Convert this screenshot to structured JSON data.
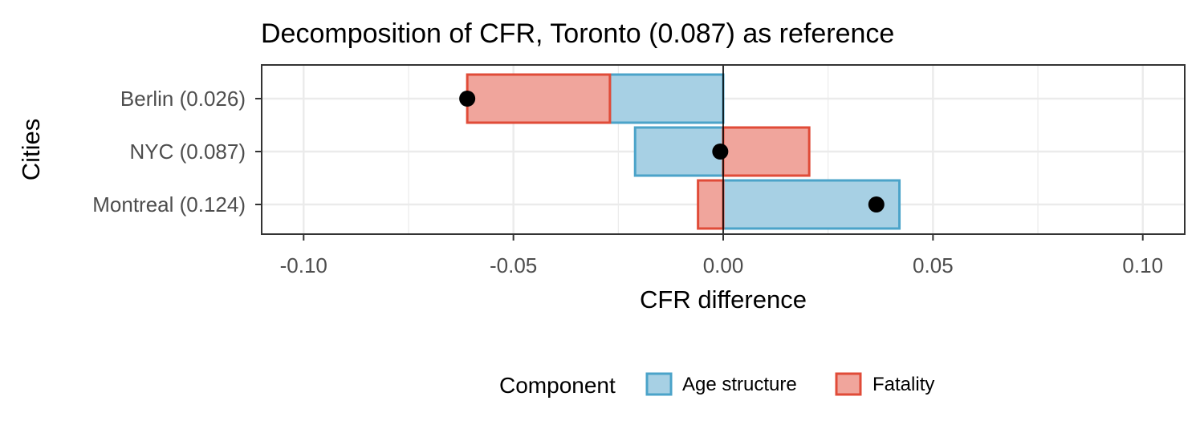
{
  "chart_data": {
    "type": "bar",
    "orientation": "horizontal",
    "stacked": true,
    "title": "Decomposition of CFR, Toronto (0.087) as reference",
    "xlabel": "CFR difference",
    "ylabel": "Cities",
    "xlim": [
      -0.11,
      0.11
    ],
    "x_ticks": [
      -0.1,
      -0.05,
      0.0,
      0.05,
      0.1
    ],
    "x_tick_labels": [
      "-0.10",
      "-0.05",
      "0.00",
      "0.05",
      "0.10"
    ],
    "categories": [
      "Berlin (0.026)",
      "NYC (0.087)",
      "Montreal (0.124)"
    ],
    "series": [
      {
        "name": "Age structure",
        "values": [
          -0.027,
          -0.021,
          0.042
        ],
        "color": "#4ba3c9",
        "fill": "#a7d0e4"
      },
      {
        "name": "Fatality",
        "values": [
          -0.034,
          0.0205,
          -0.006
        ],
        "color": "#e04b38",
        "fill": "#f0a59c"
      }
    ],
    "totals": [
      -0.061,
      -0.0007,
      0.0365
    ],
    "point_color": "#000000",
    "grid": true,
    "legend": {
      "title": "Component",
      "position": "bottom",
      "items": [
        "Age structure",
        "Fatality"
      ]
    }
  }
}
